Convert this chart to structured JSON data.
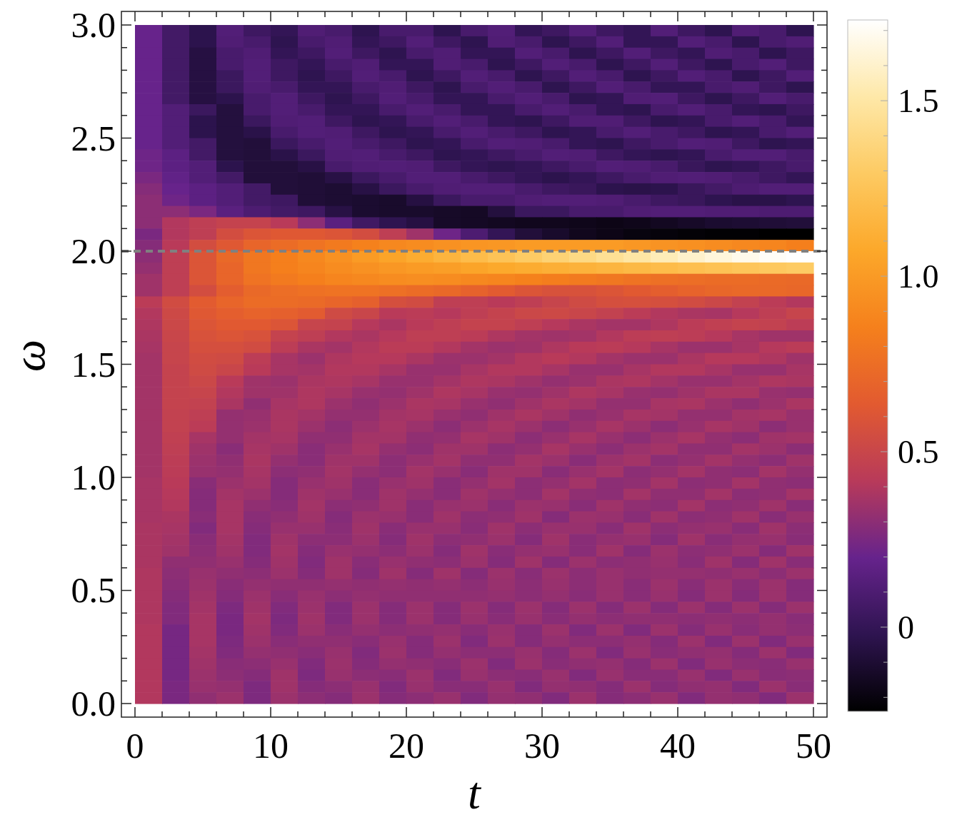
{
  "chart_data": {
    "type": "heatmap",
    "xlabel": "t",
    "ylabel": "ω",
    "xlim": [
      -1,
      51
    ],
    "ylim": [
      -0.06,
      3.06
    ],
    "xticks": [
      0,
      {
        "value": 2,
        "label": null
      },
      {
        "value": 4,
        "label": null
      },
      {
        "value": 6,
        "label": null
      },
      {
        "value": 8,
        "label": null
      },
      10,
      {
        "value": 12,
        "label": null
      },
      {
        "value": 14,
        "label": null
      },
      {
        "value": 16,
        "label": null
      },
      {
        "value": 18,
        "label": null
      },
      20,
      {
        "value": 22,
        "label": null
      },
      {
        "value": 24,
        "label": null
      },
      {
        "value": 26,
        "label": null
      },
      {
        "value": 28,
        "label": null
      },
      30,
      {
        "value": 32,
        "label": null
      },
      {
        "value": 34,
        "label": null
      },
      {
        "value": 36,
        "label": null
      },
      {
        "value": 38,
        "label": null
      },
      40,
      {
        "value": 42,
        "label": null
      },
      {
        "value": 44,
        "label": null
      },
      {
        "value": 46,
        "label": null
      },
      {
        "value": 48,
        "label": null
      },
      50
    ],
    "yticks": [
      {
        "value": 0,
        "label": "0.0"
      },
      {
        "value": 0.1,
        "label": null
      },
      {
        "value": 0.2,
        "label": null
      },
      {
        "value": 0.3,
        "label": null
      },
      {
        "value": 0.4,
        "label": null
      },
      0.5,
      {
        "value": 0.6,
        "label": null
      },
      {
        "value": 0.7,
        "label": null
      },
      {
        "value": 0.8,
        "label": null
      },
      {
        "value": 0.9,
        "label": null
      },
      {
        "value": 1,
        "label": "1.0"
      },
      {
        "value": 1.1,
        "label": null
      },
      {
        "value": 1.2,
        "label": null
      },
      {
        "value": 1.3,
        "label": null
      },
      {
        "value": 1.4,
        "label": null
      },
      1.5,
      {
        "value": 1.6,
        "label": null
      },
      {
        "value": 1.7,
        "label": null
      },
      {
        "value": 1.8,
        "label": null
      },
      {
        "value": 1.9,
        "label": null
      },
      {
        "value": 2,
        "label": "2.0"
      },
      {
        "value": 2.1,
        "label": null
      },
      {
        "value": 2.2,
        "label": null
      },
      {
        "value": 2.3,
        "label": null
      },
      {
        "value": 2.4,
        "label": null
      },
      2.5,
      {
        "value": 2.6,
        "label": null
      },
      {
        "value": 2.7,
        "label": null
      },
      {
        "value": 2.8,
        "label": null
      },
      {
        "value": 2.9,
        "label": null
      },
      {
        "value": 3,
        "label": "3.0"
      }
    ],
    "clim": [
      -0.24,
      1.73
    ],
    "cticks": [
      {
        "value": -0.2,
        "label": null
      },
      {
        "value": -0.1,
        "label": null
      },
      0,
      {
        "value": 0.1,
        "label": null
      },
      {
        "value": 0.2,
        "label": null
      },
      {
        "value": 0.3,
        "label": null
      },
      {
        "value": 0.4,
        "label": null
      },
      0.5,
      {
        "value": 0.6,
        "label": null
      },
      {
        "value": 0.7,
        "label": null
      },
      {
        "value": 0.8,
        "label": null
      },
      {
        "value": 0.9,
        "label": null
      },
      {
        "value": 1,
        "label": "1.0"
      },
      {
        "value": 1.1,
        "label": null
      },
      {
        "value": 1.2,
        "label": null
      },
      {
        "value": 1.3,
        "label": null
      },
      {
        "value": 1.4,
        "label": null
      },
      1.5,
      {
        "value": 1.6,
        "label": null
      },
      {
        "value": 1.7,
        "label": null
      }
    ],
    "colors": [
      "#000000",
      "#2e1450",
      "#66238c",
      "#b83a5a",
      "#e25a30",
      "#f5801c",
      "#fca82a",
      "#fdca62",
      "#fee8a8",
      "#ffffff"
    ],
    "ref_lines": [
      {
        "axis": "y",
        "value": 2,
        "color": "#808080",
        "line_style": "dashed"
      }
    ],
    "x": [
      1,
      3,
      5,
      7,
      9,
      11,
      13,
      15,
      17,
      19,
      21,
      23,
      25,
      27,
      29,
      31,
      33,
      35,
      37,
      39,
      41,
      43,
      45,
      47,
      49
    ],
    "y": [
      2.975,
      2.925,
      2.875,
      2.825,
      2.775,
      2.725,
      2.675,
      2.625,
      2.575,
      2.525,
      2.475,
      2.425,
      2.375,
      2.325,
      2.275,
      2.225,
      2.175,
      2.125,
      2.075,
      2.025,
      1.975,
      1.925,
      1.875,
      1.825,
      1.775,
      1.725,
      1.675,
      1.625,
      1.575,
      1.525,
      1.475,
      1.425,
      1.375,
      1.325,
      1.275,
      1.225,
      1.175,
      1.125,
      1.075,
      1.025,
      0.975,
      0.925,
      0.875,
      0.825,
      0.775,
      0.725,
      0.675,
      0.625,
      0.575,
      0.525,
      0.475,
      0.425,
      0.375,
      0.325,
      0.275,
      0.225,
      0.175,
      0.125,
      0.075,
      0.025
    ],
    "cells": [
      [
        0.2,
        0.06,
        -0.03,
        0.12,
        0.04,
        0,
        0.11,
        0.08,
        -0.02,
        0.08,
        0.08,
        -0.02,
        0.08,
        0.12,
        0,
        0.04,
        0.12,
        0.04,
        0,
        0.12,
        0.04,
        -0.02,
        0.11,
        0.08,
        -0.02
      ],
      [
        0.2,
        0.06,
        -0.03,
        0.11,
        0.08,
        -0.02,
        0.08,
        0.11,
        0,
        0.04,
        0.12,
        0.04,
        -0.02,
        0.11,
        0.08,
        -0.02,
        0.04,
        0.12,
        0,
        0,
        0.12,
        0.08,
        -0.02,
        0.08,
        0.11
      ],
      [
        0.2,
        0.06,
        -0.06,
        0.08,
        0.11,
        0,
        0.04,
        0.12,
        0.04,
        -0.02,
        0.08,
        0.11,
        0,
        0,
        0.12,
        0.08,
        -0.02,
        0.04,
        0.12,
        0.04,
        0,
        0.11,
        0.08,
        -0.02,
        0.04
      ],
      [
        0.2,
        0.06,
        -0.06,
        0.08,
        0.12,
        0.04,
        0,
        0.08,
        0.11,
        0,
        0,
        0.11,
        0.08,
        -0.02,
        0.04,
        0.12,
        0.08,
        -0.02,
        0.04,
        0.12,
        0.04,
        -0.02,
        0.08,
        0.12,
        0.04
      ],
      [
        0.2,
        0.06,
        -0.06,
        0.03,
        0.12,
        0.04,
        -0.02,
        0.04,
        0.12,
        0.08,
        -0.02,
        0.04,
        0.12,
        0.08,
        -0.02,
        0.04,
        0.12,
        0.08,
        -0.02,
        0.04,
        0.12,
        0.08,
        -0.02,
        0.04,
        0.12
      ],
      [
        0.2,
        0.06,
        -0.06,
        0.03,
        0.11,
        0.08,
        0,
        0,
        0.08,
        0.11,
        0.04,
        -0.02,
        0.08,
        0.12,
        0.08,
        -0.02,
        0.04,
        0.12,
        0.08,
        0,
        0,
        0.08,
        0.11,
        0.04,
        -0.02
      ],
      [
        0.2,
        0.06,
        -0.06,
        -0.03,
        0.08,
        0.12,
        0.04,
        -0.02,
        0.04,
        0.12,
        0.08,
        0,
        0,
        0.08,
        0.12,
        0.08,
        -0.02,
        0,
        0.11,
        0.12,
        0.04,
        -0.02,
        0.04,
        0.12,
        0.08
      ],
      [
        0.2,
        0.12,
        0.03,
        -0.07,
        0.08,
        0.12,
        0.08,
        0,
        0,
        0.08,
        0.12,
        0.08,
        0,
        0,
        0.08,
        0.12,
        0.08,
        0,
        -0.02,
        0.08,
        0.12,
        0.08,
        0,
        -0.02,
        0.04
      ],
      [
        0.2,
        0.12,
        -0.03,
        -0.07,
        0.03,
        0.11,
        0.12,
        0.04,
        -0.02,
        0,
        0.08,
        0.12,
        0.08,
        0,
        -0.02,
        0.04,
        0.11,
        0.11,
        0.04,
        -0.02,
        0,
        0.08,
        0.12,
        0.08,
        0
      ],
      [
        0.2,
        0.12,
        -0.03,
        -0.07,
        -0.04,
        0.08,
        0.12,
        0.11,
        0.04,
        -0.02,
        0,
        0.08,
        0.12,
        0.08,
        0.04,
        -0.02,
        0,
        0.08,
        0.12,
        0.08,
        0.04,
        -0.02,
        0,
        0.08,
        0.12
      ],
      [
        0.2,
        0.12,
        0.06,
        -0.07,
        -0.08,
        0.03,
        0.08,
        0.12,
        0.08,
        0.04,
        -0.02,
        0,
        0.08,
        0.12,
        0.11,
        0.08,
        0,
        -0.02,
        0.04,
        0.08,
        0.12,
        0.11,
        0.04,
        -0.02,
        0
      ],
      [
        0.22,
        0.16,
        0.06,
        -0.07,
        -0.08,
        -0.04,
        0.03,
        0.11,
        0.12,
        0.08,
        0.04,
        -0.02,
        0,
        0.04,
        0.08,
        0.12,
        0.11,
        0.04,
        0,
        -0.02,
        0,
        0.08,
        0.12,
        0.12,
        0.08
      ],
      [
        0.22,
        0.16,
        0.12,
        -0.03,
        -0.08,
        -0.08,
        -0.05,
        0.08,
        0.11,
        0.12,
        0.11,
        0.04,
        0,
        -0.02,
        0,
        0.04,
        0.08,
        0.12,
        0.11,
        0.08,
        0.02,
        -0.02,
        0,
        0.04,
        0.08
      ],
      [
        0.25,
        0.18,
        0.12,
        0.06,
        -0.08,
        -0.08,
        -0.09,
        -0.05,
        0.03,
        0.08,
        0.12,
        0.12,
        0.08,
        0.04,
        0,
        -0.03,
        0,
        0.04,
        0.08,
        0.11,
        0.12,
        0.11,
        0.08,
        0.04,
        0
      ],
      [
        0.28,
        0.2,
        0.16,
        0.12,
        0.06,
        -0.08,
        -0.09,
        -0.1,
        -0.05,
        0.03,
        0.08,
        0.11,
        0.12,
        0.12,
        0.08,
        0.04,
        0.02,
        -0.03,
        -0.04,
        -0.03,
        0.02,
        0.06,
        0.1,
        0.12,
        0.12
      ],
      [
        0.3,
        0.22,
        0.16,
        0.12,
        0.06,
        0.04,
        -0.09,
        -0.1,
        -0.11,
        -0.12,
        -0.06,
        0.03,
        0.08,
        0.08,
        0.11,
        0.12,
        0.12,
        0.11,
        0.08,
        0.04,
        0.02,
        -0.02,
        -0.04,
        -0.04,
        -0.02
      ],
      [
        0.3,
        0.3,
        0.25,
        0.15,
        0.1,
        0.06,
        0.04,
        -0.05,
        -0.11,
        -0.12,
        -0.12,
        -0.13,
        -0.14,
        -0.07,
        0.03,
        0.03,
        0.08,
        0.08,
        0.11,
        0.12,
        0.12,
        0.11,
        0.11,
        0.1,
        0.1
      ],
      [
        0.3,
        0.4,
        0.45,
        0.48,
        0.48,
        0.42,
        0.3,
        0.15,
        0.05,
        -0.02,
        -0.06,
        -0.13,
        -0.14,
        -0.15,
        -0.16,
        -0.16,
        -0.17,
        -0.18,
        -0.17,
        -0.15,
        -0.13,
        -0.11,
        -0.1,
        -0.09,
        -0.08
      ],
      [
        0.25,
        0.4,
        0.45,
        0.55,
        0.6,
        0.62,
        0.62,
        0.6,
        0.55,
        0.45,
        0.35,
        0.22,
        0.1,
        0,
        -0.08,
        -0.12,
        -0.16,
        -0.18,
        -0.2,
        -0.21,
        -0.22,
        -0.23,
        -0.23,
        -0.24,
        -0.24
      ],
      [
        0.28,
        0.42,
        0.55,
        0.62,
        0.7,
        0.74,
        0.78,
        0.82,
        0.86,
        0.9,
        0.92,
        0.95,
        0.97,
        0.98,
        1,
        1,
        1,
        1,
        0.98,
        0.96,
        0.94,
        0.92,
        0.9,
        0.88,
        0.85
      ],
      [
        0.3,
        0.45,
        0.6,
        0.72,
        0.8,
        0.85,
        0.9,
        0.95,
        1,
        1.05,
        1.1,
        1.15,
        1.2,
        1.25,
        1.3,
        1.35,
        1.4,
        1.45,
        1.5,
        1.55,
        1.6,
        1.64,
        1.68,
        1.71,
        1.73
      ],
      [
        0.32,
        0.45,
        0.6,
        0.7,
        0.8,
        0.85,
        0.88,
        0.92,
        0.95,
        0.98,
        1,
        1.02,
        1.05,
        1.08,
        1.1,
        1.12,
        1.14,
        1.16,
        1.18,
        1.2,
        1.22,
        1.24,
        1.26,
        1.28,
        1.3
      ],
      [
        0.35,
        0.45,
        0.6,
        0.7,
        0.78,
        0.82,
        0.85,
        0.88,
        0.9,
        0.92,
        0.93,
        0.92,
        0.9,
        0.88,
        0.86,
        0.84,
        0.82,
        0.8,
        0.78,
        0.76,
        0.75,
        0.74,
        0.74,
        0.73,
        0.72
      ],
      [
        0.35,
        0.45,
        0.55,
        0.65,
        0.72,
        0.75,
        0.77,
        0.78,
        0.78,
        0.76,
        0.74,
        0.72,
        0.68,
        0.64,
        0.6,
        0.58,
        0.58,
        0.6,
        0.63,
        0.66,
        0.69,
        0.71,
        0.72,
        0.72,
        0.71
      ],
      [
        0.43,
        0.54,
        0.64,
        0.7,
        0.74,
        0.74,
        0.73,
        0.7,
        0.67,
        0.56,
        0.54,
        0.45,
        0.45,
        0.42,
        0.45,
        0.49,
        0.53,
        0.56,
        0.57,
        0.56,
        0.54,
        0.51,
        0.47,
        0.43,
        0.4
      ],
      [
        0.4,
        0.52,
        0.62,
        0.66,
        0.69,
        0.67,
        0.64,
        0.53,
        0.5,
        0.42,
        0.43,
        0.41,
        0.45,
        0.48,
        0.51,
        0.52,
        0.5,
        0.47,
        0.43,
        0.4,
        0.38,
        0.37,
        0.41,
        0.45,
        0.49
      ],
      [
        0.39,
        0.51,
        0.6,
        0.63,
        0.63,
        0.6,
        0.49,
        0.48,
        0.41,
        0.38,
        0.42,
        0.45,
        0.48,
        0.48,
        0.45,
        0.41,
        0.38,
        0.36,
        0.36,
        0.39,
        0.43,
        0.46,
        0.48,
        0.47,
        0.44
      ],
      [
        0.38,
        0.5,
        0.58,
        0.6,
        0.58,
        0.48,
        0.45,
        0.4,
        0.38,
        0.41,
        0.45,
        0.45,
        0.43,
        0.39,
        0.36,
        0.35,
        0.36,
        0.4,
        0.44,
        0.45,
        0.44,
        0.41,
        0.37,
        0.35,
        0.35
      ],
      [
        0.37,
        0.49,
        0.56,
        0.56,
        0.54,
        0.44,
        0.38,
        0.36,
        0.4,
        0.43,
        0.43,
        0.4,
        0.36,
        0.34,
        0.35,
        0.39,
        0.42,
        0.43,
        0.41,
        0.37,
        0.34,
        0.34,
        0.37,
        0.41,
        0.43
      ],
      [
        0.36,
        0.49,
        0.54,
        0.53,
        0.44,
        0.37,
        0.34,
        0.39,
        0.41,
        0.41,
        0.38,
        0.34,
        0.34,
        0.36,
        0.4,
        0.42,
        0.4,
        0.36,
        0.34,
        0.34,
        0.38,
        0.41,
        0.41,
        0.39,
        0.35
      ],
      [
        0.36,
        0.48,
        0.53,
        0.5,
        0.42,
        0.37,
        0.36,
        0.4,
        0.4,
        0.37,
        0.33,
        0.33,
        0.37,
        0.4,
        0.4,
        0.37,
        0.33,
        0.33,
        0.37,
        0.4,
        0.4,
        0.37,
        0.33,
        0.33,
        0.37
      ],
      [
        0.36,
        0.48,
        0.51,
        0.42,
        0.35,
        0.34,
        0.38,
        0.39,
        0.37,
        0.33,
        0.33,
        0.36,
        0.39,
        0.38,
        0.35,
        0.32,
        0.34,
        0.38,
        0.39,
        0.36,
        0.33,
        0.33,
        0.36,
        0.39,
        0.38
      ],
      [
        0.36,
        0.48,
        0.49,
        0.4,
        0.35,
        0.35,
        0.39,
        0.37,
        0.33,
        0.32,
        0.35,
        0.39,
        0.37,
        0.33,
        0.32,
        0.35,
        0.39,
        0.37,
        0.33,
        0.32,
        0.35,
        0.38,
        0.38,
        0.33,
        0.32
      ],
      [
        0.36,
        0.48,
        0.47,
        0.38,
        0.31,
        0.37,
        0.39,
        0.34,
        0.31,
        0.34,
        0.38,
        0.37,
        0.33,
        0.31,
        0.35,
        0.38,
        0.36,
        0.32,
        0.32,
        0.37,
        0.38,
        0.34,
        0.31,
        0.34,
        0.38
      ],
      [
        0.36,
        0.47,
        0.45,
        0.32,
        0.33,
        0.38,
        0.36,
        0.32,
        0.32,
        0.36,
        0.37,
        0.33,
        0.31,
        0.35,
        0.38,
        0.35,
        0.31,
        0.33,
        0.37,
        0.36,
        0.32,
        0.32,
        0.36,
        0.37,
        0.33
      ],
      [
        0.36,
        0.47,
        0.43,
        0.32,
        0.34,
        0.38,
        0.34,
        0.3,
        0.34,
        0.37,
        0.34,
        0.3,
        0.34,
        0.37,
        0.34,
        0.3,
        0.33,
        0.37,
        0.34,
        0.3,
        0.33,
        0.37,
        0.35,
        0.3,
        0.33
      ],
      [
        0.36,
        0.46,
        0.37,
        0.32,
        0.36,
        0.37,
        0.31,
        0.31,
        0.36,
        0.36,
        0.31,
        0.32,
        0.37,
        0.35,
        0.3,
        0.33,
        0.37,
        0.33,
        0.3,
        0.34,
        0.37,
        0.32,
        0.3,
        0.35,
        0.36
      ],
      [
        0.36,
        0.45,
        0.35,
        0.29,
        0.37,
        0.35,
        0.29,
        0.33,
        0.37,
        0.32,
        0.3,
        0.35,
        0.35,
        0.3,
        0.32,
        0.37,
        0.33,
        0.3,
        0.34,
        0.36,
        0.31,
        0.31,
        0.36,
        0.34,
        0.3
      ],
      [
        0.36,
        0.44,
        0.34,
        0.31,
        0.38,
        0.32,
        0.29,
        0.35,
        0.35,
        0.3,
        0.33,
        0.36,
        0.31,
        0.31,
        0.36,
        0.34,
        0.29,
        0.34,
        0.36,
        0.3,
        0.32,
        0.36,
        0.32,
        0.3,
        0.35
      ],
      [
        0.36,
        0.43,
        0.33,
        0.32,
        0.37,
        0.3,
        0.31,
        0.36,
        0.32,
        0.3,
        0.36,
        0.33,
        0.29,
        0.35,
        0.35,
        0.29,
        0.33,
        0.36,
        0.3,
        0.32,
        0.36,
        0.31,
        0.3,
        0.36,
        0.32
      ],
      [
        0.37,
        0.42,
        0.29,
        0.34,
        0.36,
        0.28,
        0.33,
        0.35,
        0.29,
        0.33,
        0.35,
        0.29,
        0.32,
        0.36,
        0.3,
        0.32,
        0.36,
        0.3,
        0.31,
        0.36,
        0.3,
        0.31,
        0.36,
        0.31,
        0.3
      ],
      [
        0.37,
        0.41,
        0.28,
        0.36,
        0.34,
        0.28,
        0.35,
        0.33,
        0.29,
        0.35,
        0.32,
        0.29,
        0.35,
        0.32,
        0.3,
        0.36,
        0.31,
        0.3,
        0.36,
        0.31,
        0.31,
        0.36,
        0.3,
        0.31,
        0.36
      ],
      [
        0.37,
        0.4,
        0.28,
        0.37,
        0.31,
        0.29,
        0.36,
        0.3,
        0.31,
        0.35,
        0.29,
        0.33,
        0.34,
        0.29,
        0.34,
        0.33,
        0.29,
        0.35,
        0.31,
        0.3,
        0.36,
        0.3,
        0.31,
        0.35,
        0.29
      ],
      [
        0.37,
        0.38,
        0.29,
        0.37,
        0.29,
        0.31,
        0.35,
        0.28,
        0.34,
        0.33,
        0.29,
        0.35,
        0.3,
        0.31,
        0.35,
        0.28,
        0.34,
        0.33,
        0.29,
        0.35,
        0.3,
        0.31,
        0.35,
        0.29,
        0.33
      ],
      [
        0.38,
        0.37,
        0.27,
        0.37,
        0.28,
        0.33,
        0.33,
        0.29,
        0.35,
        0.29,
        0.33,
        0.33,
        0.29,
        0.35,
        0.3,
        0.33,
        0.33,
        0.29,
        0.35,
        0.3,
        0.32,
        0.33,
        0.29,
        0.35,
        0.3
      ],
      [
        0.38,
        0.36,
        0.29,
        0.36,
        0.27,
        0.35,
        0.3,
        0.3,
        0.34,
        0.28,
        0.35,
        0.3,
        0.31,
        0.34,
        0.28,
        0.35,
        0.29,
        0.32,
        0.33,
        0.28,
        0.35,
        0.29,
        0.32,
        0.33,
        0.29
      ],
      [
        0.38,
        0.35,
        0.3,
        0.35,
        0.27,
        0.36,
        0.28,
        0.33,
        0.32,
        0.3,
        0.34,
        0.28,
        0.35,
        0.29,
        0.32,
        0.33,
        0.29,
        0.35,
        0.28,
        0.34,
        0.3,
        0.31,
        0.34,
        0.28,
        0.35
      ],
      [
        0.38,
        0.31,
        0.31,
        0.33,
        0.28,
        0.35,
        0.27,
        0.35,
        0.29,
        0.33,
        0.31,
        0.3,
        0.34,
        0.28,
        0.35,
        0.28,
        0.34,
        0.3,
        0.31,
        0.33,
        0.29,
        0.35,
        0.28,
        0.35,
        0.29
      ],
      [
        0.39,
        0.3,
        0.33,
        0.31,
        0.3,
        0.34,
        0.28,
        0.35,
        0.28,
        0.35,
        0.28,
        0.35,
        0.28,
        0.34,
        0.29,
        0.34,
        0.3,
        0.33,
        0.31,
        0.32,
        0.32,
        0.31,
        0.33,
        0.3,
        0.34
      ],
      [
        0.39,
        0.29,
        0.34,
        0.29,
        0.32,
        0.31,
        0.31,
        0.32,
        0.31,
        0.32,
        0.31,
        0.32,
        0.3,
        0.33,
        0.3,
        0.33,
        0.3,
        0.33,
        0.29,
        0.34,
        0.29,
        0.34,
        0.29,
        0.34,
        0.28
      ],
      [
        0.39,
        0.28,
        0.35,
        0.28,
        0.34,
        0.29,
        0.33,
        0.3,
        0.32,
        0.31,
        0.31,
        0.31,
        0.31,
        0.32,
        0.3,
        0.32,
        0.29,
        0.33,
        0.29,
        0.33,
        0.28,
        0.34,
        0.28,
        0.34,
        0.28
      ],
      [
        0.39,
        0.27,
        0.36,
        0.26,
        0.35,
        0.27,
        0.34,
        0.27,
        0.34,
        0.28,
        0.34,
        0.28,
        0.34,
        0.28,
        0.34,
        0.28,
        0.34,
        0.28,
        0.34,
        0.28,
        0.34,
        0.28,
        0.34,
        0.28,
        0.34
      ],
      [
        0.39,
        0.27,
        0.37,
        0.25,
        0.36,
        0.26,
        0.35,
        0.27,
        0.34,
        0.28,
        0.34,
        0.28,
        0.33,
        0.29,
        0.33,
        0.29,
        0.32,
        0.3,
        0.31,
        0.31,
        0.3,
        0.31,
        0.3,
        0.32,
        0.29
      ],
      [
        0.4,
        0.24,
        0.37,
        0.25,
        0.35,
        0.27,
        0.34,
        0.29,
        0.32,
        0.3,
        0.31,
        0.32,
        0.29,
        0.33,
        0.28,
        0.34,
        0.27,
        0.34,
        0.27,
        0.34,
        0.28,
        0.33,
        0.29,
        0.32,
        0.3
      ],
      [
        0.4,
        0.24,
        0.37,
        0.26,
        0.34,
        0.29,
        0.31,
        0.31,
        0.29,
        0.33,
        0.28,
        0.34,
        0.27,
        0.34,
        0.28,
        0.32,
        0.3,
        0.3,
        0.32,
        0.28,
        0.34,
        0.27,
        0.34,
        0.27,
        0.33
      ],
      [
        0.4,
        0.24,
        0.36,
        0.27,
        0.32,
        0.31,
        0.29,
        0.33,
        0.27,
        0.34,
        0.28,
        0.32,
        0.3,
        0.3,
        0.33,
        0.28,
        0.34,
        0.27,
        0.33,
        0.29,
        0.31,
        0.32,
        0.28,
        0.34,
        0.27
      ],
      [
        0.4,
        0.24,
        0.35,
        0.29,
        0.3,
        0.33,
        0.27,
        0.34,
        0.28,
        0.32,
        0.31,
        0.29,
        0.34,
        0.27,
        0.34,
        0.29,
        0.31,
        0.32,
        0.28,
        0.34,
        0.27,
        0.33,
        0.3,
        0.29,
        0.33
      ],
      [
        0.4,
        0.24,
        0.34,
        0.3,
        0.28,
        0.35,
        0.26,
        0.33,
        0.3,
        0.29,
        0.34,
        0.27,
        0.33,
        0.3,
        0.29,
        0.33,
        0.27,
        0.33,
        0.29,
        0.29,
        0.33,
        0.27,
        0.33,
        0.29,
        0.3
      ],
      [
        0.4,
        0.25,
        0.33,
        0.32,
        0.26,
        0.35,
        0.28,
        0.3,
        0.33,
        0.27,
        0.33,
        0.29,
        0.29,
        0.33,
        0.27,
        0.32,
        0.31,
        0.28,
        0.34,
        0.28,
        0.31,
        0.32,
        0.27,
        0.34,
        0.29
      ],
      [
        0.4,
        0.25,
        0.31,
        0.34,
        0.26,
        0.34,
        0.3,
        0.28,
        0.34,
        0.28,
        0.3,
        0.33,
        0.27,
        0.32,
        0.31,
        0.27,
        0.34,
        0.28,
        0.3,
        0.33,
        0.27,
        0.32,
        0.31,
        0.27,
        0.34
      ]
    ]
  }
}
